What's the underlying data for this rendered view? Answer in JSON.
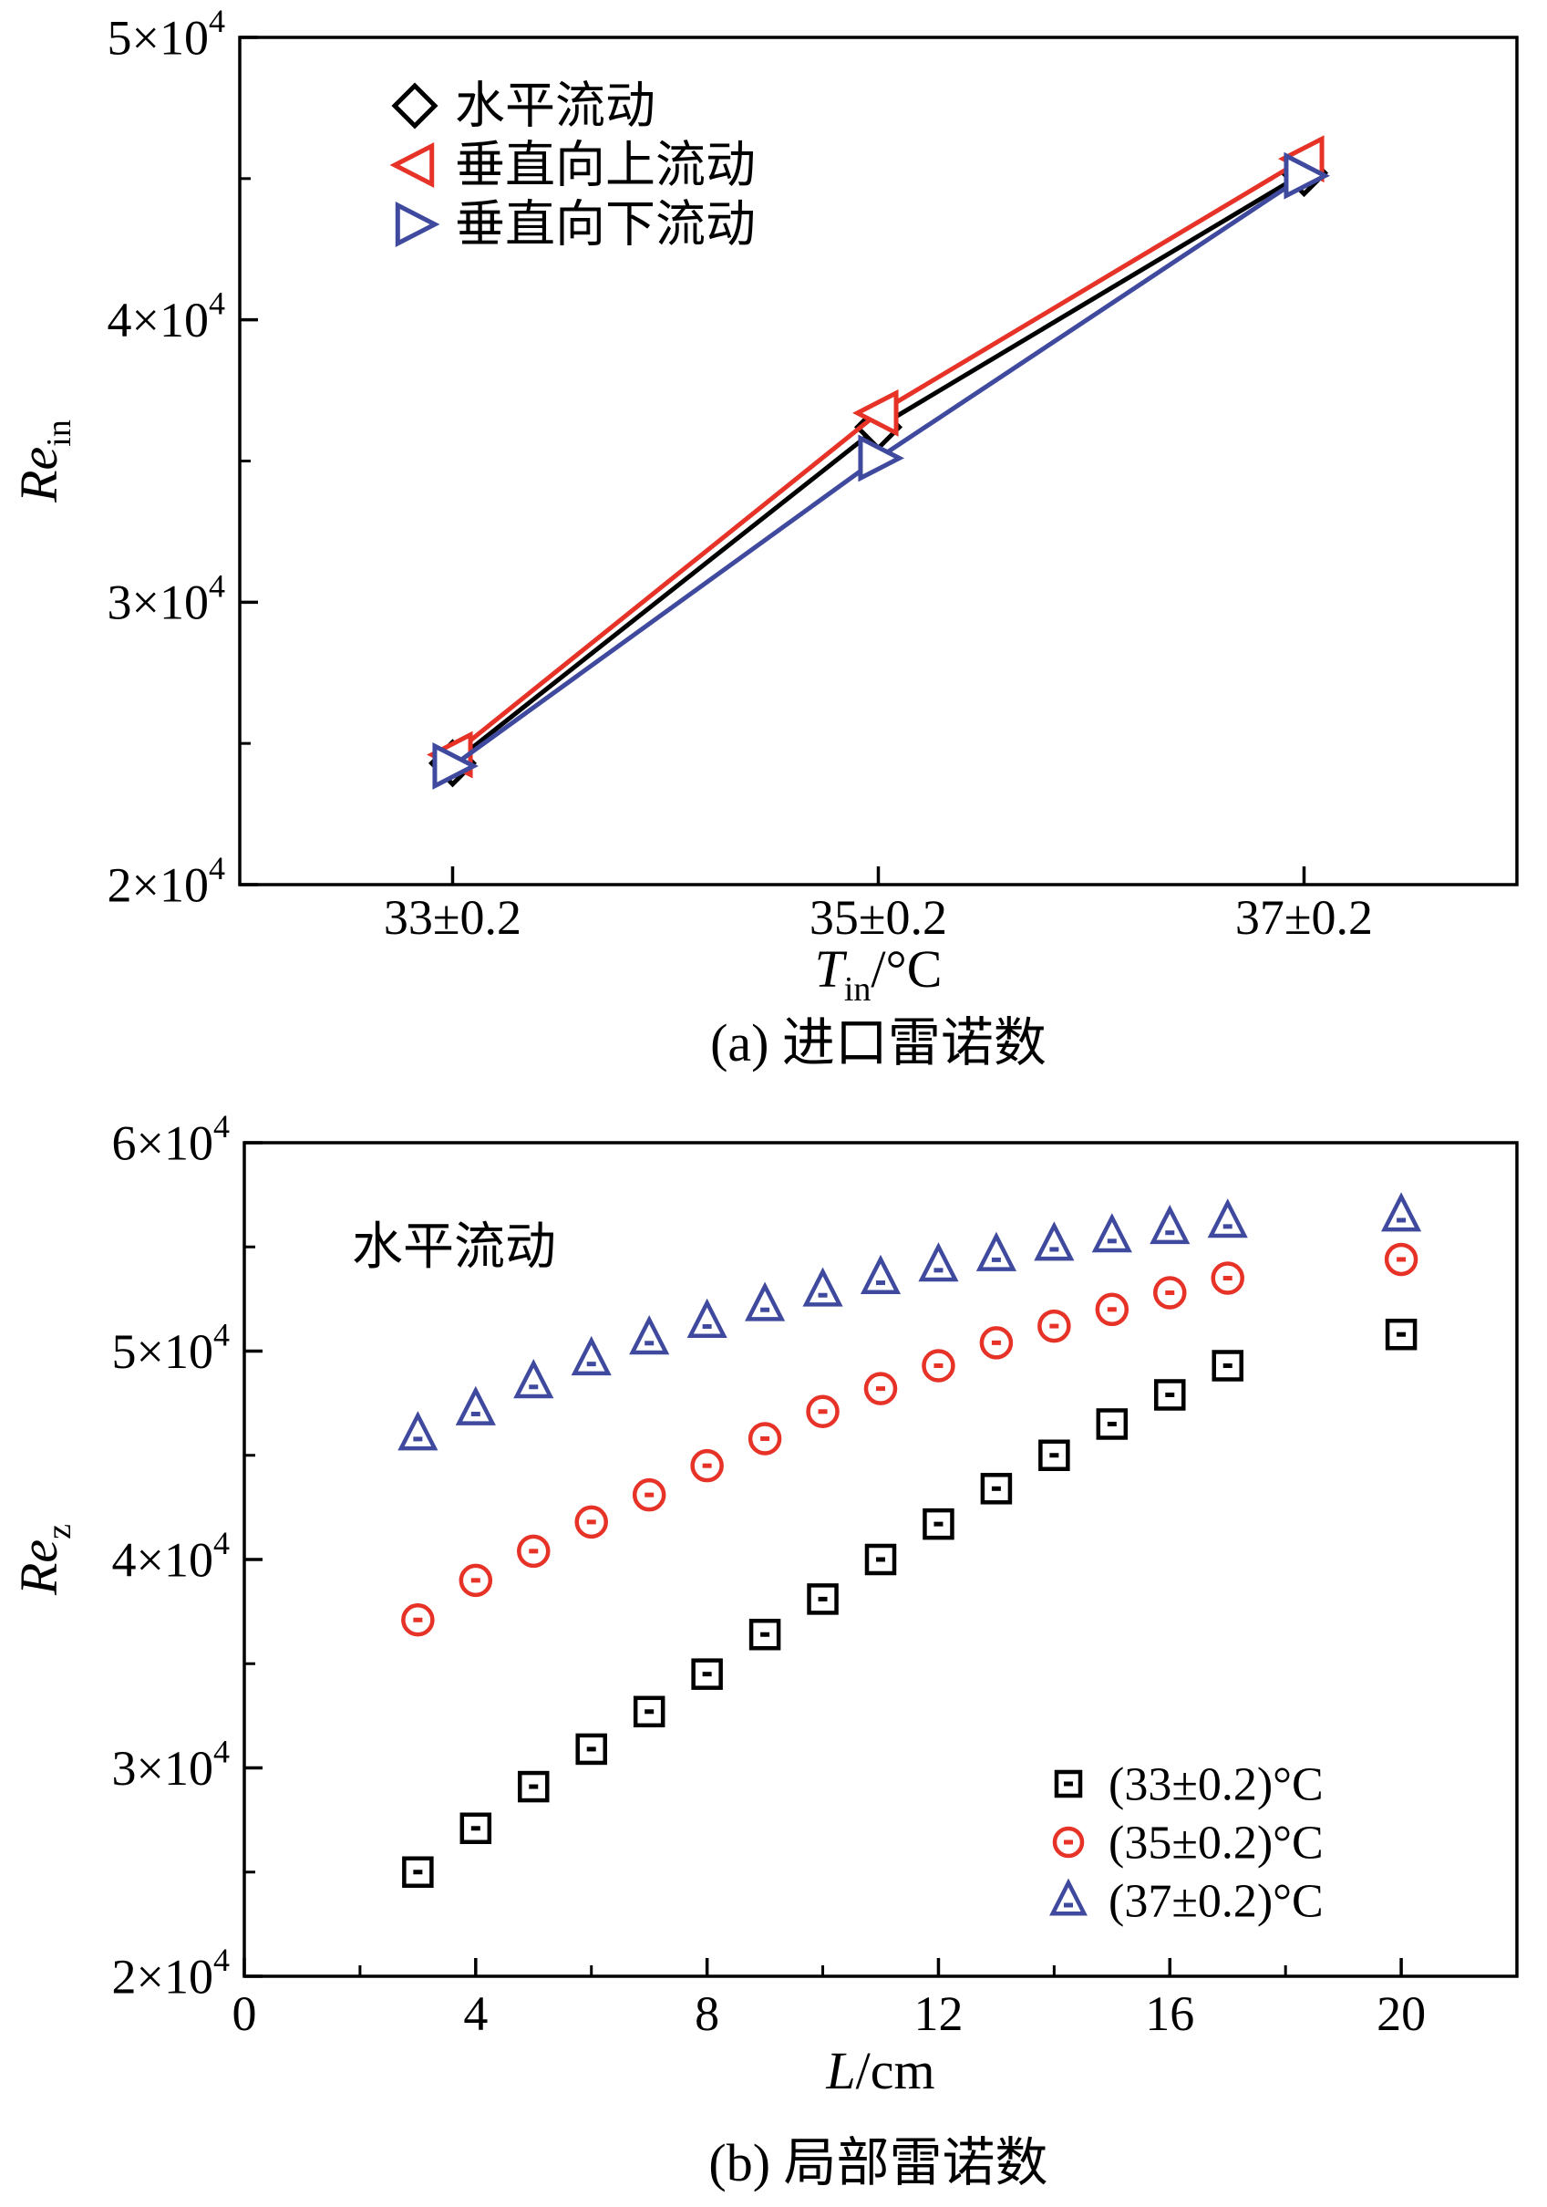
{
  "figure": {
    "background": "#ffffff"
  },
  "colors": {
    "black": "#000000",
    "red": "#e73227",
    "blue": "#3f4a9e"
  },
  "chart_data": [
    {
      "id": "a",
      "type": "line",
      "caption": "(a) 进口雷诺数",
      "xlabel_parts": [
        {
          "text": "T",
          "italic": true
        },
        {
          "text": "in",
          "sub": true
        },
        {
          "text": "/°C"
        }
      ],
      "ylabel_parts": [
        {
          "text": "Re",
          "italic": true
        },
        {
          "text": "in",
          "sub": true
        }
      ],
      "categories": [
        "33±0.2",
        "35±0.2",
        "37±0.2"
      ],
      "ylim": [
        20000,
        50000
      ],
      "yticks": [
        20000,
        30000,
        40000,
        50000
      ],
      "ytick_labels": [
        "2×10^4",
        "3×10^4",
        "4×10^4",
        "5×10^4"
      ],
      "yminor": [
        25000,
        35000,
        45000
      ],
      "legend_position": "top-left",
      "grid": false,
      "series": [
        {
          "name": "水平流动",
          "marker": "diamond",
          "color": "#000000",
          "line": true,
          "values": [
            24300,
            36200,
            45200
          ]
        },
        {
          "name": "垂直向上流动",
          "marker": "triangle-left",
          "color": "#e73227",
          "line": true,
          "values": [
            24600,
            36700,
            45700
          ]
        },
        {
          "name": "垂直向下流动",
          "marker": "triangle-right",
          "color": "#3f4a9e",
          "line": true,
          "values": [
            24200,
            35100,
            45100
          ]
        }
      ]
    },
    {
      "id": "b",
      "type": "scatter",
      "caption": "(b) 局部雷诺数",
      "annotation": "水平流动",
      "xlabel_parts": [
        {
          "text": "L",
          "italic": true
        },
        {
          "text": "/cm"
        }
      ],
      "ylabel_parts": [
        {
          "text": "Re",
          "italic": true
        },
        {
          "text": "z",
          "sub": true
        }
      ],
      "xlim": [
        0,
        22
      ],
      "xticks": [
        0,
        4,
        8,
        12,
        16,
        20
      ],
      "xminor": [
        2,
        6,
        10,
        14,
        18
      ],
      "ylim": [
        20000,
        60000
      ],
      "yticks": [
        20000,
        30000,
        40000,
        50000,
        60000
      ],
      "ytick_labels": [
        "2×10^4",
        "3×10^4",
        "4×10^4",
        "5×10^4",
        "6×10^4"
      ],
      "yminor": [
        25000,
        35000,
        45000,
        55000
      ],
      "legend_position": "bottom-right",
      "grid": false,
      "x": [
        3,
        4,
        5,
        6,
        7,
        8,
        9,
        10,
        11,
        12,
        13,
        14,
        15,
        16,
        17,
        20
      ],
      "series": [
        {
          "name": "(33±0.2)°C",
          "marker": "square",
          "color": "#000000",
          "center_dot": true,
          "values": [
            25000,
            27100,
            29100,
            30900,
            32700,
            34500,
            36400,
            38100,
            40000,
            41700,
            43400,
            45000,
            46500,
            47900,
            49300,
            50800
          ]
        },
        {
          "name": "(35±0.2)°C",
          "marker": "circle",
          "color": "#e73227",
          "center_dot": true,
          "values": [
            37100,
            39000,
            40400,
            41800,
            43100,
            44500,
            45800,
            47100,
            48200,
            49300,
            50400,
            51200,
            52000,
            52800,
            53500,
            54400
          ]
        },
        {
          "name": "(37±0.2)°C",
          "marker": "triangle-up",
          "color": "#3f4a9e",
          "center_dot": true,
          "values": [
            46000,
            47200,
            48500,
            49600,
            50600,
            51400,
            52200,
            52900,
            53500,
            54100,
            54600,
            55100,
            55500,
            55900,
            56200,
            56500
          ]
        }
      ]
    }
  ]
}
